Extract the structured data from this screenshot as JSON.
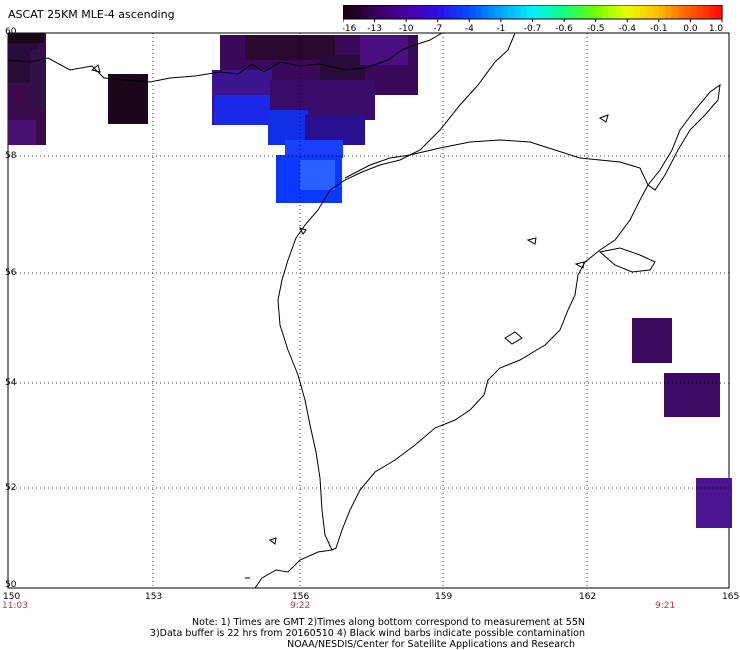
{
  "title": "ASCAT 25KM MLE-4 ascending",
  "colorbar": {
    "labels": [
      "-16",
      "-13",
      "-10",
      "-7",
      "-4",
      "-1",
      "-0.7",
      "-0.6",
      "-0.5",
      "-0.4",
      "-0.1",
      "0.0",
      "1.0"
    ],
    "colors": [
      "#1a0010",
      "#3a0060",
      "#4b00a8",
      "#2a10e8",
      "#0050ff",
      "#00a8ff",
      "#00f0ff",
      "#10ff80",
      "#70ff00",
      "#e8ff00",
      "#ffc000",
      "#ff6000",
      "#ff1000"
    ]
  },
  "axes": {
    "lat_labels": [
      "60",
      "58",
      "56",
      "54",
      "52",
      "50"
    ],
    "lon_labels": [
      "150",
      "153",
      "156",
      "159",
      "162",
      "165"
    ],
    "time_labels": [
      "11:03",
      "9:22",
      "9:21"
    ]
  },
  "notes": {
    "line1": "Note: 1) Times are GMT 2)Times along bottom correspond to measurement at 55N",
    "line2": "3)Data buffer is 22 hrs from 20160510 4) Black wind barbs indicate possible contamination",
    "line3": "NOAA/NESDIS/Center for Satellite Applications and Research"
  },
  "colors": {
    "deep": "#1a0818",
    "purple_dark": "#2e0a3e",
    "purple": "#3d0a5e",
    "violet": "#3d1490",
    "blue": "#1030e8",
    "blue_mid": "#2050ff"
  }
}
